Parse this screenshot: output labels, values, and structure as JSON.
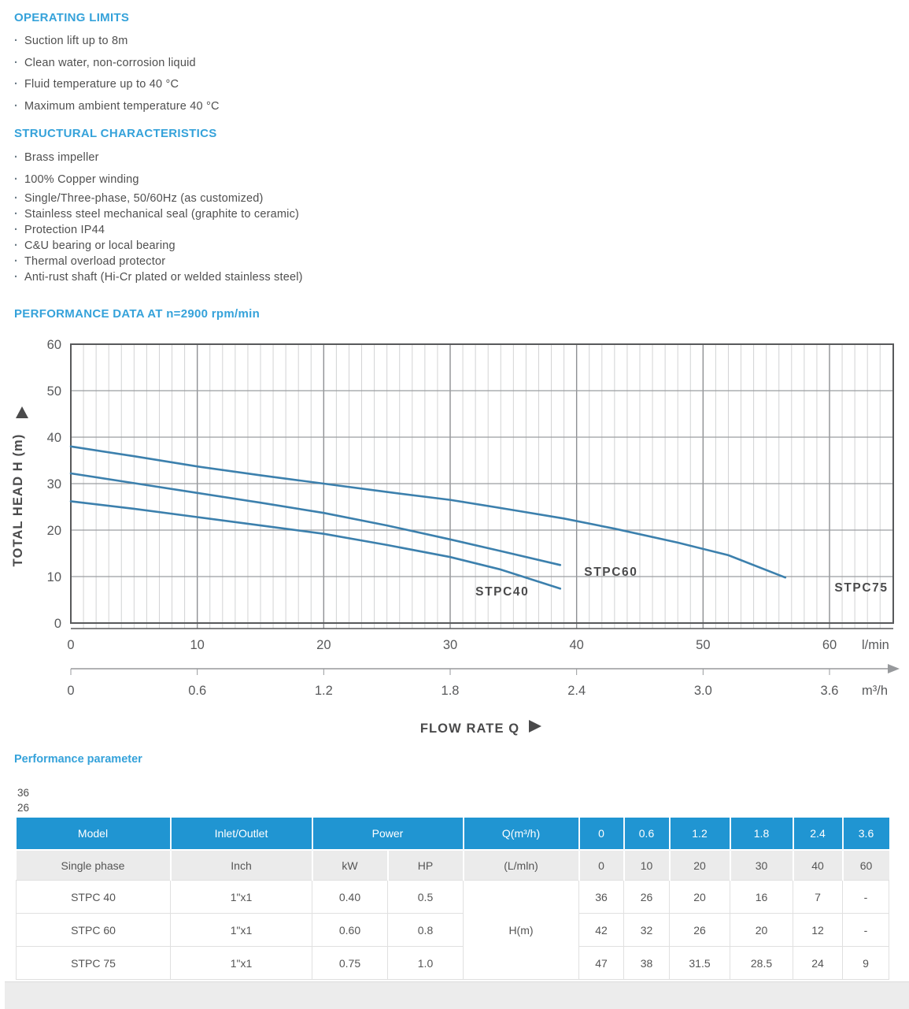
{
  "colors": {
    "heading_blue": "#35a2da",
    "table_header_blue": "#2095d2",
    "body_text": "#4d4d4d",
    "curve_blue": "#3c80ad"
  },
  "sections": [
    {
      "heading": "OPERATING LIMITS",
      "items": [
        "Suction lift up to 8m",
        "Clean water, non-corrosion liquid",
        "Fluid temperature up to 40 °C",
        "Maximum ambient temperature 40 °C"
      ]
    },
    {
      "heading": "STRUCTURAL CHARACTERISTICS",
      "items": [
        "Brass impeller",
        "100% Copper winding",
        "Single/Three-phase, 50/60Hz (as customized)",
        "Stainless steel mechanical seal (graphite to ceramic)",
        "Protection IP44",
        "C&U bearing or local bearing",
        "Thermal overload protector",
        "Anti-rust shaft (Hi-Cr plated or welded stainless steel)"
      ]
    }
  ],
  "chart_heading": "PERFORMANCE DATA AT n=2900 rpm/min",
  "chart_data": {
    "type": "line",
    "title": "PERFORMANCE DATA AT n=2900 rpm/min",
    "xlabel": "FLOW RATE Q",
    "ylabel": "TOTAL HEAD H (m)",
    "grid": true,
    "line_color": "#3c80ad",
    "y_axis": {
      "range": [
        0,
        60
      ],
      "ticks": [
        0,
        10,
        20,
        30,
        40,
        50,
        60
      ]
    },
    "x_axis_primary": {
      "unit": "l/min",
      "ticks": [
        0,
        10,
        20,
        30,
        40,
        50,
        60
      ],
      "minor_step": 1,
      "max": 65
    },
    "x_axis_secondary": {
      "unit": "m³/h",
      "ticks": [
        "0",
        "0.6",
        "1.2",
        "1.8",
        "2.4",
        "3.0",
        "3.6"
      ]
    },
    "series": [
      {
        "name": "STPC40",
        "label_pos": [
          32.0,
          5.9
        ],
        "points": [
          [
            0,
            26.2
          ],
          [
            5,
            24.6
          ],
          [
            10,
            22.8
          ],
          [
            15,
            21.0
          ],
          [
            20,
            19.2
          ],
          [
            25,
            16.8
          ],
          [
            30,
            14.2
          ],
          [
            34,
            11.5
          ],
          [
            38.7,
            7.4
          ]
        ]
      },
      {
        "name": "STPC60",
        "label_pos": [
          40.6,
          10.2
        ],
        "points": [
          [
            0,
            32.2
          ],
          [
            5,
            30.1
          ],
          [
            10,
            28.0
          ],
          [
            15,
            25.9
          ],
          [
            20,
            23.7
          ],
          [
            25,
            21.0
          ],
          [
            30,
            18.0
          ],
          [
            34,
            15.5
          ],
          [
            38.7,
            12.5
          ]
        ]
      },
      {
        "name": "STPC75",
        "label_pos": [
          60.4,
          6.8
        ],
        "points": [
          [
            0,
            38.0
          ],
          [
            5,
            35.9
          ],
          [
            10,
            33.7
          ],
          [
            15,
            31.8
          ],
          [
            20,
            30.0
          ],
          [
            25,
            28.2
          ],
          [
            30,
            26.5
          ],
          [
            35,
            24.3
          ],
          [
            39,
            22.5
          ],
          [
            43,
            20.3
          ],
          [
            48,
            17.3
          ],
          [
            52,
            14.6
          ],
          [
            56.5,
            9.8
          ]
        ]
      }
    ]
  },
  "performance_parameter_heading": "Performance parameter",
  "stray_values": [
    "36",
    "26"
  ],
  "table": {
    "header": [
      "Model",
      "Inlet/Outlet",
      "Power",
      "Q(m³/h)",
      "0",
      "0.6",
      "1.2",
      "1.8",
      "2.4",
      "3.6"
    ],
    "subheader": [
      "Single phase",
      "Inch",
      "kW",
      "HP",
      "(L/mln)",
      "0",
      "10",
      "20",
      "30",
      "40",
      "60"
    ],
    "merged_q_label": "H(m)",
    "rows": [
      {
        "model": "STPC 40",
        "inlet": "1\"x1",
        "kw": "0.40",
        "hp": "0.5",
        "values": [
          "36",
          "26",
          "20",
          "16",
          "7",
          "-"
        ]
      },
      {
        "model": "STPC 60",
        "inlet": "1\"x1",
        "kw": "0.60",
        "hp": "0.8",
        "values": [
          "42",
          "32",
          "26",
          "20",
          "12",
          "-"
        ]
      },
      {
        "model": "STPC 75",
        "inlet": "1\"x1",
        "kw": "0.75",
        "hp": "1.0",
        "values": [
          "47",
          "38",
          "31.5",
          "28.5",
          "24",
          "9"
        ]
      }
    ]
  }
}
